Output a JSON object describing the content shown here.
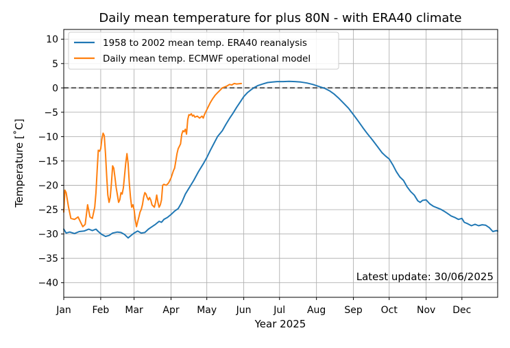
{
  "chart_data": {
    "type": "line",
    "title": "Daily mean temperature for plus 80N - with ERA40 climate",
    "xlabel": "Year 2025",
    "ylabel": "Temperature [˚C]",
    "annotation": "Latest update: 30/06/2025",
    "grid": true,
    "legend_position": "top-left",
    "xlim_day_of_year": [
      1,
      365
    ],
    "ylim": [
      -43,
      12
    ],
    "yticks": [
      10,
      5,
      0,
      -5,
      -10,
      -15,
      -20,
      -25,
      -30,
      -35,
      -40
    ],
    "xticks": [
      {
        "label": "Jan",
        "day": 1
      },
      {
        "label": "Feb",
        "day": 32
      },
      {
        "label": "Mar",
        "day": 60
      },
      {
        "label": "Apr",
        "day": 91
      },
      {
        "label": "May",
        "day": 121
      },
      {
        "label": "Jun",
        "day": 152
      },
      {
        "label": "Jul",
        "day": 182
      },
      {
        "label": "Aug",
        "day": 213
      },
      {
        "label": "Sep",
        "day": 244
      },
      {
        "label": "Oct",
        "day": 274
      },
      {
        "label": "Nov",
        "day": 305
      },
      {
        "label": "Dec",
        "day": 335
      }
    ],
    "reference_line": {
      "y": 0,
      "style": "dashed",
      "color": "#555555"
    },
    "series": [
      {
        "name": "1958 to 2002 mean temp. ERA40 reanalysis",
        "color": "#1f77b4",
        "points": [
          [
            1,
            -29.0
          ],
          [
            3,
            -29.8
          ],
          [
            6,
            -29.6
          ],
          [
            10,
            -29.9
          ],
          [
            14,
            -29.5
          ],
          [
            18,
            -29.4
          ],
          [
            22,
            -29.0
          ],
          [
            25,
            -29.3
          ],
          [
            28,
            -29.0
          ],
          [
            30,
            -29.5
          ],
          [
            33,
            -30.1
          ],
          [
            36,
            -30.5
          ],
          [
            39,
            -30.3
          ],
          [
            42,
            -29.8
          ],
          [
            46,
            -29.6
          ],
          [
            49,
            -29.7
          ],
          [
            52,
            -30.1
          ],
          [
            55,
            -30.8
          ],
          [
            57,
            -30.4
          ],
          [
            60,
            -29.8
          ],
          [
            63,
            -29.4
          ],
          [
            66,
            -29.8
          ],
          [
            69,
            -29.7
          ],
          [
            72,
            -29.0
          ],
          [
            75,
            -28.5
          ],
          [
            78,
            -28.0
          ],
          [
            81,
            -27.4
          ],
          [
            83,
            -27.6
          ],
          [
            85,
            -27.0
          ],
          [
            88,
            -26.6
          ],
          [
            91,
            -26.0
          ],
          [
            94,
            -25.3
          ],
          [
            97,
            -24.8
          ],
          [
            100,
            -23.5
          ],
          [
            103,
            -21.8
          ],
          [
            106,
            -20.6
          ],
          [
            110,
            -19.0
          ],
          [
            114,
            -17.2
          ],
          [
            118,
            -15.6
          ],
          [
            121,
            -14.3
          ],
          [
            124,
            -12.8
          ],
          [
            127,
            -11.4
          ],
          [
            130,
            -10.0
          ],
          [
            134,
            -8.8
          ],
          [
            137,
            -7.5
          ],
          [
            140,
            -6.3
          ],
          [
            143,
            -5.2
          ],
          [
            146,
            -4.0
          ],
          [
            149,
            -2.9
          ],
          [
            152,
            -1.8
          ],
          [
            155,
            -1.0
          ],
          [
            158,
            -0.4
          ],
          [
            161,
            0.1
          ],
          [
            164,
            0.5
          ],
          [
            168,
            0.8
          ],
          [
            172,
            1.1
          ],
          [
            176,
            1.2
          ],
          [
            180,
            1.3
          ],
          [
            185,
            1.3
          ],
          [
            190,
            1.35
          ],
          [
            195,
            1.3
          ],
          [
            200,
            1.2
          ],
          [
            205,
            1.0
          ],
          [
            210,
            0.7
          ],
          [
            215,
            0.3
          ],
          [
            220,
            -0.1
          ],
          [
            224,
            -0.6
          ],
          [
            228,
            -1.3
          ],
          [
            232,
            -2.2
          ],
          [
            236,
            -3.2
          ],
          [
            240,
            -4.2
          ],
          [
            244,
            -5.5
          ],
          [
            248,
            -6.8
          ],
          [
            252,
            -8.2
          ],
          [
            256,
            -9.5
          ],
          [
            260,
            -10.7
          ],
          [
            264,
            -12.0
          ],
          [
            268,
            -13.3
          ],
          [
            271,
            -14.0
          ],
          [
            274,
            -14.6
          ],
          [
            277,
            -15.8
          ],
          [
            280,
            -17.2
          ],
          [
            283,
            -18.3
          ],
          [
            286,
            -19.0
          ],
          [
            289,
            -20.3
          ],
          [
            292,
            -21.3
          ],
          [
            295,
            -22.0
          ],
          [
            298,
            -23.2
          ],
          [
            300,
            -23.5
          ],
          [
            302,
            -23.1
          ],
          [
            305,
            -23.0
          ],
          [
            308,
            -23.8
          ],
          [
            311,
            -24.3
          ],
          [
            314,
            -24.6
          ],
          [
            317,
            -24.9
          ],
          [
            320,
            -25.3
          ],
          [
            323,
            -25.8
          ],
          [
            326,
            -26.3
          ],
          [
            329,
            -26.6
          ],
          [
            332,
            -27.0
          ],
          [
            335,
            -26.8
          ],
          [
            337,
            -27.6
          ],
          [
            340,
            -27.9
          ],
          [
            343,
            -28.3
          ],
          [
            346,
            -28.0
          ],
          [
            349,
            -28.3
          ],
          [
            352,
            -28.1
          ],
          [
            355,
            -28.2
          ],
          [
            358,
            -28.7
          ],
          [
            361,
            -29.5
          ],
          [
            364,
            -29.3
          ],
          [
            365,
            -29.4
          ]
        ]
      },
      {
        "name": "Daily mean temp. ECMWF operational model",
        "color": "#ff7f0e",
        "points": [
          [
            1,
            -25.5
          ],
          [
            2,
            -21.0
          ],
          [
            3,
            -21.5
          ],
          [
            5,
            -24.5
          ],
          [
            7,
            -26.8
          ],
          [
            10,
            -27.0
          ],
          [
            13,
            -26.5
          ],
          [
            15,
            -27.5
          ],
          [
            17,
            -28.5
          ],
          [
            19,
            -28.0
          ],
          [
            21,
            -24.0
          ],
          [
            23,
            -26.5
          ],
          [
            25,
            -26.8
          ],
          [
            27,
            -24.5
          ],
          [
            28,
            -21.5
          ],
          [
            29,
            -17.0
          ],
          [
            30,
            -12.8
          ],
          [
            31,
            -13.0
          ],
          [
            32,
            -12.5
          ],
          [
            33,
            -10.5
          ],
          [
            34,
            -9.3
          ],
          [
            35,
            -9.8
          ],
          [
            36,
            -13.5
          ],
          [
            37,
            -18.0
          ],
          [
            38,
            -22.0
          ],
          [
            39,
            -23.5
          ],
          [
            40,
            -22.5
          ],
          [
            41,
            -19.5
          ],
          [
            42,
            -16.0
          ],
          [
            43,
            -16.5
          ],
          [
            44,
            -18.5
          ],
          [
            45,
            -20.5
          ],
          [
            46,
            -22.0
          ],
          [
            47,
            -23.5
          ],
          [
            48,
            -23.0
          ],
          [
            49,
            -21.5
          ],
          [
            50,
            -21.8
          ],
          [
            51,
            -20.5
          ],
          [
            52,
            -18.0
          ],
          [
            53,
            -15.5
          ],
          [
            54,
            -13.5
          ],
          [
            55,
            -15.5
          ],
          [
            56,
            -19.5
          ],
          [
            57,
            -22.5
          ],
          [
            58,
            -24.5
          ],
          [
            59,
            -24.0
          ],
          [
            60,
            -25.0
          ],
          [
            61,
            -27.0
          ],
          [
            62,
            -28.5
          ],
          [
            63,
            -27.5
          ],
          [
            64,
            -26.5
          ],
          [
            65,
            -25.5
          ],
          [
            66,
            -25.0
          ],
          [
            67,
            -24.0
          ],
          [
            68,
            -22.5
          ],
          [
            69,
            -21.5
          ],
          [
            70,
            -21.8
          ],
          [
            71,
            -22.5
          ],
          [
            72,
            -23.0
          ],
          [
            73,
            -22.5
          ],
          [
            74,
            -23.0
          ],
          [
            75,
            -24.0
          ],
          [
            77,
            -24.5
          ],
          [
            78,
            -23.5
          ],
          [
            79,
            -22.0
          ],
          [
            80,
            -23.5
          ],
          [
            81,
            -24.5
          ],
          [
            82,
            -24.0
          ],
          [
            83,
            -23.0
          ],
          [
            84,
            -20.0
          ],
          [
            85,
            -19.8
          ],
          [
            87,
            -20.0
          ],
          [
            89,
            -19.5
          ],
          [
            91,
            -18.5
          ],
          [
            93,
            -17.0
          ],
          [
            94,
            -16.5
          ],
          [
            95,
            -15.0
          ],
          [
            96,
            -13.5
          ],
          [
            97,
            -12.5
          ],
          [
            98,
            -12.0
          ],
          [
            99,
            -11.5
          ],
          [
            100,
            -9.5
          ],
          [
            101,
            -8.8
          ],
          [
            102,
            -9.0
          ],
          [
            103,
            -8.5
          ],
          [
            104,
            -9.5
          ],
          [
            105,
            -6.5
          ],
          [
            106,
            -5.5
          ],
          [
            107,
            -5.6
          ],
          [
            108,
            -5.3
          ],
          [
            109,
            -5.8
          ],
          [
            110,
            -5.6
          ],
          [
            111,
            -6.0
          ],
          [
            113,
            -5.8
          ],
          [
            115,
            -6.2
          ],
          [
            117,
            -5.8
          ],
          [
            118,
            -6.2
          ],
          [
            119,
            -5.5
          ],
          [
            120,
            -5.0
          ],
          [
            122,
            -4.0
          ],
          [
            124,
            -3.0
          ],
          [
            126,
            -2.2
          ],
          [
            128,
            -1.5
          ],
          [
            130,
            -1.0
          ],
          [
            132,
            -0.5
          ],
          [
            134,
            0.0
          ],
          [
            136,
            0.2
          ],
          [
            138,
            0.4
          ],
          [
            140,
            0.7
          ],
          [
            142,
            0.6
          ],
          [
            144,
            0.9
          ],
          [
            146,
            0.8
          ],
          [
            148,
            0.85
          ],
          [
            150,
            0.9
          ]
        ]
      }
    ]
  }
}
